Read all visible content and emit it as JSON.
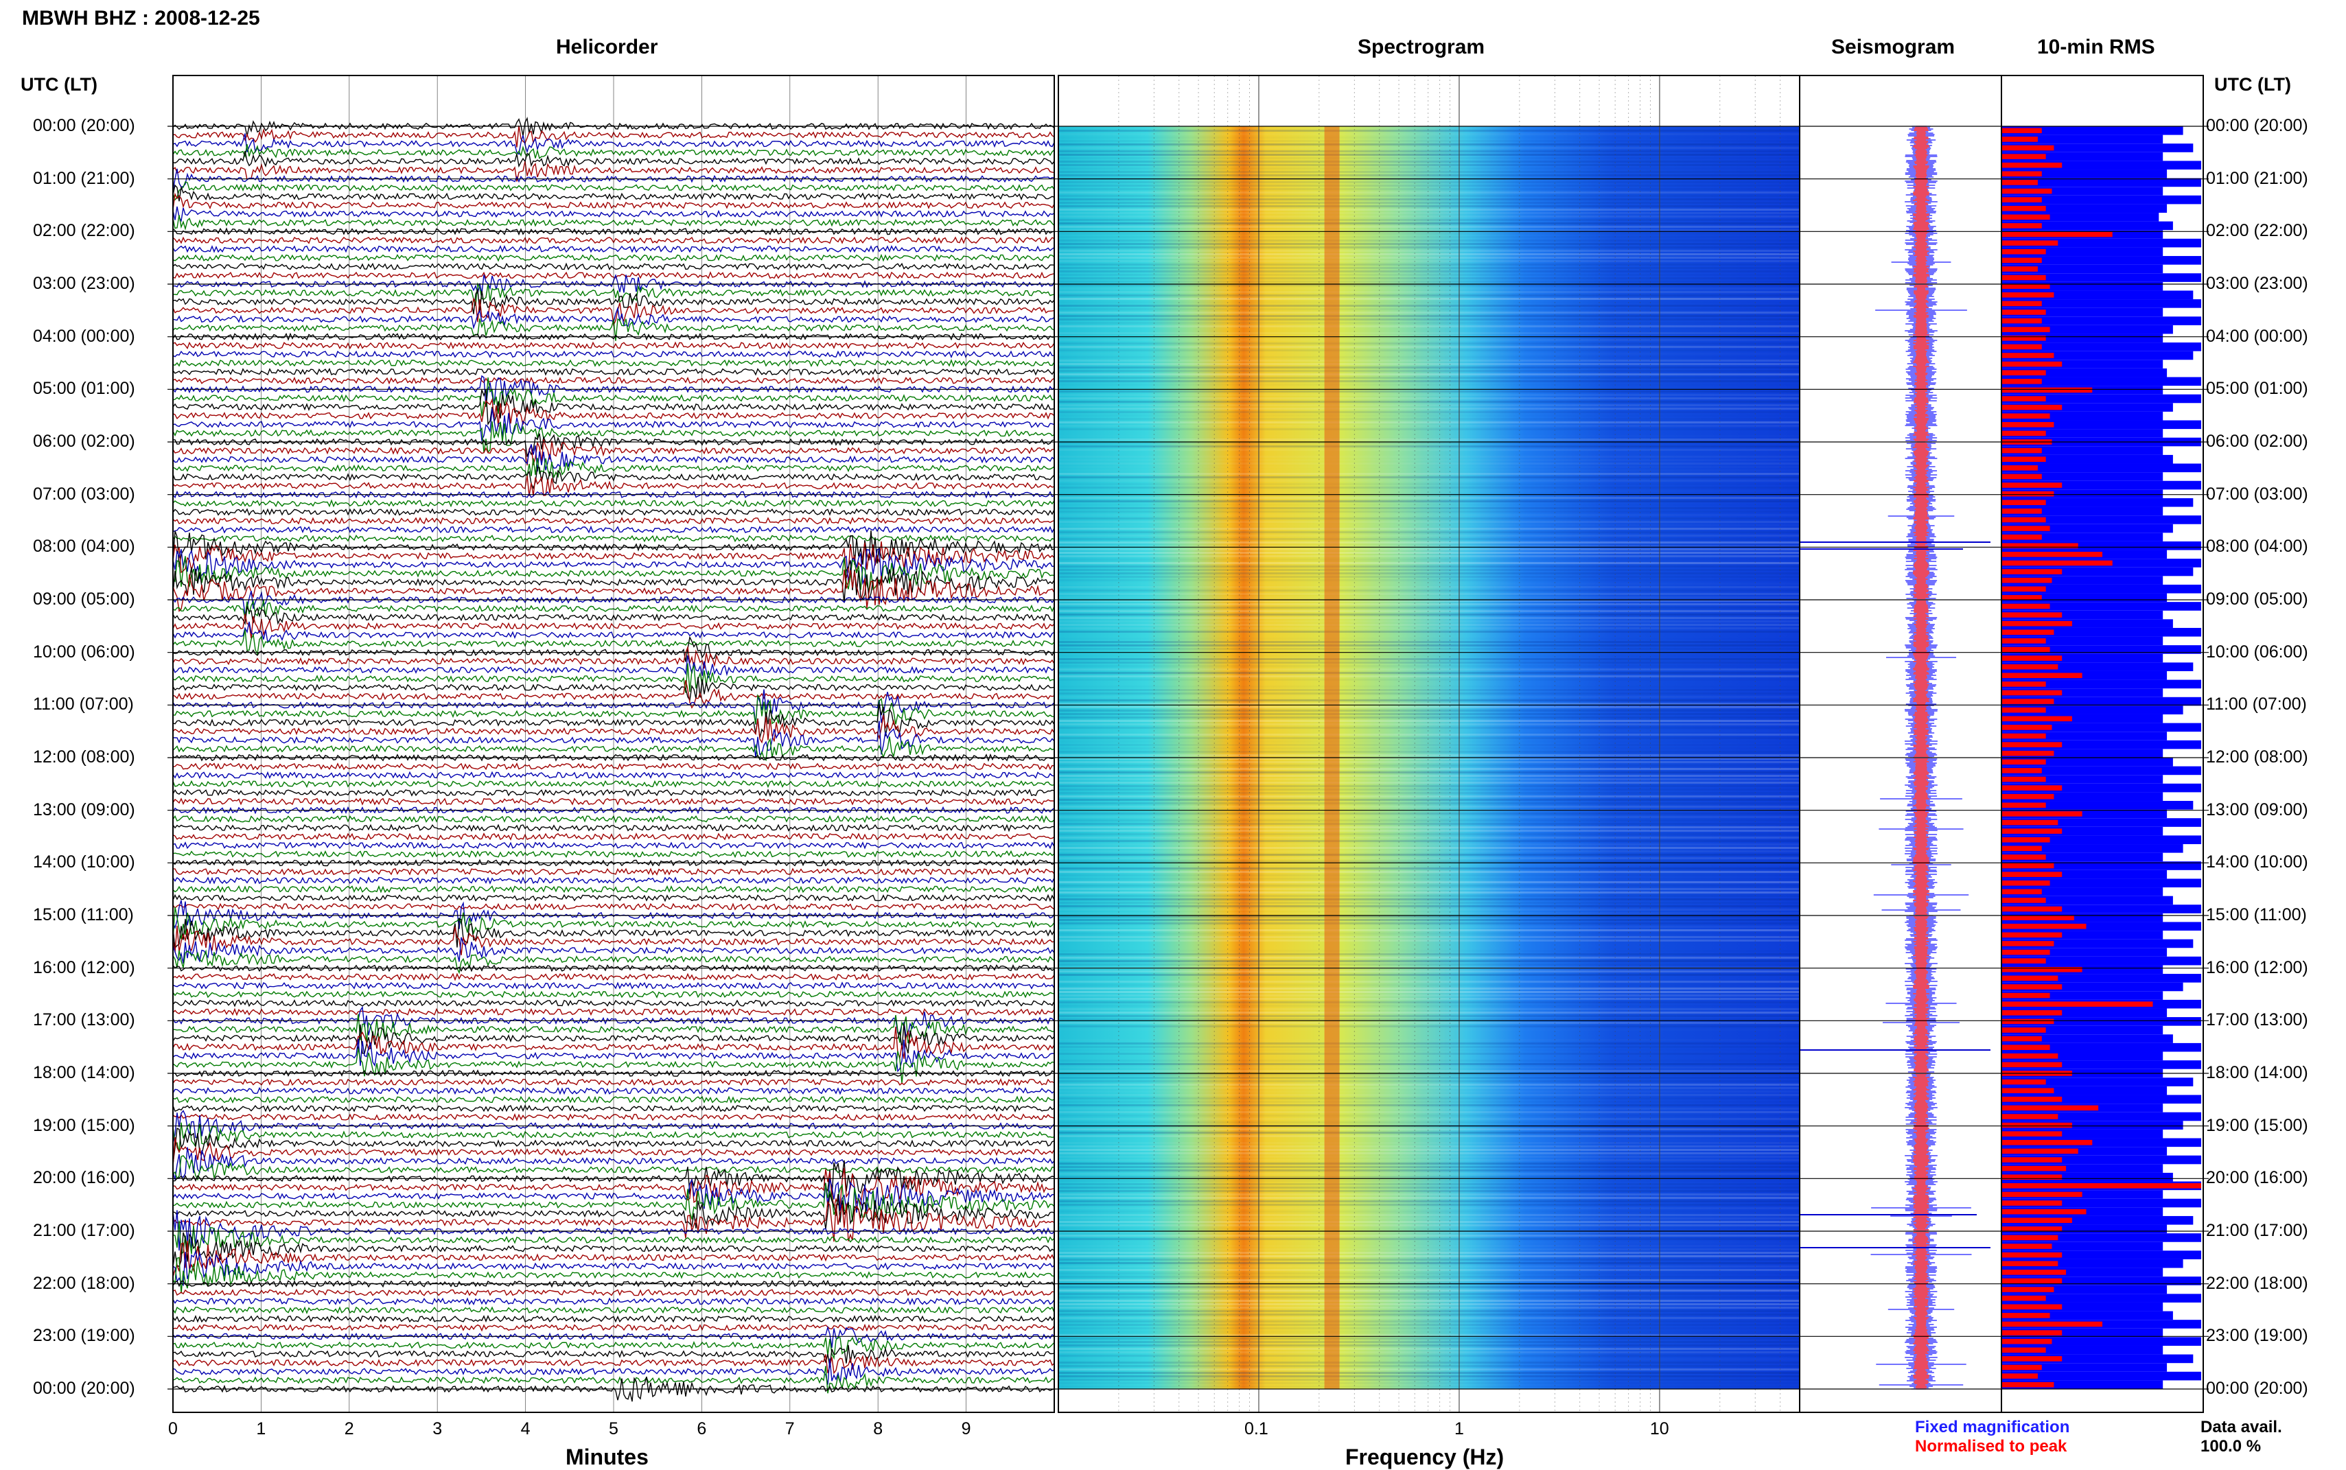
{
  "title": "MBWH BHZ : 2008-12-25",
  "panels": {
    "helicorder": "Helicorder",
    "spectrogram": "Spectrogram",
    "seismogram": "Seismogram",
    "rms": "10-min RMS"
  },
  "axis_left_header": "UTC (LT)",
  "axis_right_header": "UTC (LT)",
  "x_labels": {
    "helicorder": "Minutes",
    "spectrogram": "Frequency (Hz)"
  },
  "legend": {
    "fixed": "Fixed magnification",
    "normalised": "Normalised to peak",
    "fixed_color": "#1f1fff",
    "normalised_color": "#ff0000"
  },
  "data_avail_label": "Data avail.",
  "data_avail_value": "100.0 %",
  "colors": {
    "trace_cycle": [
      "#000000",
      "#a00000",
      "#0000b0",
      "#007a00"
    ],
    "rms_fixed": "#0000ff",
    "rms_normalised": "#ff0000"
  },
  "chart_data": {
    "type": "heatmap",
    "time_rows": [
      "00:00 (20:00)",
      "01:00 (21:00)",
      "02:00 (22:00)",
      "03:00 (23:00)",
      "04:00 (00:00)",
      "05:00 (01:00)",
      "06:00 (02:00)",
      "07:00 (03:00)",
      "08:00 (04:00)",
      "09:00 (05:00)",
      "10:00 (06:00)",
      "11:00 (07:00)",
      "12:00 (08:00)",
      "13:00 (09:00)",
      "14:00 (10:00)",
      "15:00 (11:00)",
      "16:00 (12:00)",
      "17:00 (13:00)",
      "18:00 (14:00)",
      "19:00 (15:00)",
      "20:00 (16:00)",
      "21:00 (17:00)",
      "22:00 (18:00)",
      "23:00 (19:00)",
      "00:00 (20:00)"
    ],
    "helicorder_xticks": [
      "0",
      "1",
      "2",
      "3",
      "4",
      "5",
      "6",
      "7",
      "8",
      "9"
    ],
    "helicorder_xrange": [
      0,
      10
    ],
    "spectrogram_xticks": [
      "0.1",
      "1",
      "10"
    ],
    "spectrogram_xrange": [
      0.01,
      50
    ],
    "spectrogram_xscale": "log",
    "spectrogram_peak_hz": 0.23,
    "rms_normalised_fraction": [
      0.2,
      0.18,
      0.26,
      0.22,
      0.3,
      0.2,
      0.18,
      0.25,
      0.2,
      0.22,
      0.24,
      0.2,
      0.55,
      0.28,
      0.22,
      0.2,
      0.18,
      0.22,
      0.24,
      0.26,
      0.2,
      0.22,
      0.2,
      0.24,
      0.22,
      0.2,
      0.26,
      0.3,
      0.22,
      0.2,
      0.45,
      0.22,
      0.3,
      0.24,
      0.26,
      0.22,
      0.25,
      0.2,
      0.22,
      0.18,
      0.2,
      0.3,
      0.26,
      0.22,
      0.2,
      0.22,
      0.24,
      0.2,
      0.38,
      0.5,
      0.55,
      0.3,
      0.25,
      0.22,
      0.2,
      0.24,
      0.3,
      0.35,
      0.26,
      0.22,
      0.24,
      0.3,
      0.28,
      0.4,
      0.22,
      0.3,
      0.26,
      0.22,
      0.35,
      0.25,
      0.22,
      0.3,
      0.26,
      0.22,
      0.2,
      0.22,
      0.3,
      0.26,
      0.22,
      0.4,
      0.28,
      0.3,
      0.24,
      0.2,
      0.22,
      0.26,
      0.3,
      0.24,
      0.2,
      0.22,
      0.3,
      0.36,
      0.42,
      0.3,
      0.26,
      0.24,
      0.22,
      0.4,
      0.28,
      0.3,
      0.24,
      0.75,
      0.3,
      0.26,
      0.22,
      0.2,
      0.24,
      0.28,
      0.3,
      0.35,
      0.22,
      0.26,
      0.3,
      0.48,
      0.28,
      0.35,
      0.3,
      0.45,
      0.38,
      0.3,
      0.32,
      0.3,
      0.99,
      0.4,
      0.3,
      0.42,
      0.35,
      0.3,
      0.28,
      0.25,
      0.3,
      0.28,
      0.32,
      0.3,
      0.26,
      0.22,
      0.3,
      0.24,
      0.5,
      0.3,
      0.25,
      0.22,
      0.3
    ],
    "rms_fixed_fraction": [
      0.9,
      0.8,
      0.95,
      0.8,
      0.99,
      0.82,
      0.99,
      0.8,
      0.99,
      0.82,
      0.78,
      0.85,
      0.8,
      0.99,
      0.8,
      0.99,
      0.8,
      0.99,
      0.8,
      0.95,
      0.99,
      0.8,
      0.99,
      0.85,
      0.8,
      0.99,
      0.95,
      0.8,
      0.82,
      0.99,
      0.8,
      0.99,
      0.85,
      0.8,
      0.99,
      0.8,
      0.99,
      0.8,
      0.85,
      0.99,
      0.8,
      0.99,
      0.8,
      0.95,
      0.8,
      0.99,
      0.85,
      0.8,
      0.99,
      0.82,
      0.99,
      0.95,
      0.8,
      0.99,
      0.82,
      0.99,
      0.8,
      0.85,
      0.99,
      0.8,
      0.99,
      0.8,
      0.95,
      0.82,
      0.99,
      0.8,
      0.99,
      0.9,
      0.8,
      0.99,
      0.82,
      0.99,
      0.8,
      0.85,
      0.99,
      0.8,
      0.99,
      0.8,
      0.95,
      0.82,
      0.99,
      0.8,
      0.99,
      0.9,
      0.8,
      0.99,
      0.82,
      0.99,
      0.8,
      0.85,
      0.99,
      0.8,
      0.99,
      0.8,
      0.95,
      0.82,
      0.99,
      0.8,
      0.99,
      0.9,
      0.8,
      0.99,
      0.82,
      0.99,
      0.8,
      0.85,
      0.99,
      0.8,
      0.99,
      0.8,
      0.95,
      0.82,
      0.99,
      0.8,
      0.99,
      0.9,
      0.8,
      0.99,
      0.82,
      0.99,
      0.8,
      0.85,
      0.99,
      0.8,
      0.99,
      0.8,
      0.95,
      0.82,
      0.99,
      0.8,
      0.99,
      0.9,
      0.8,
      0.99,
      0.82,
      0.99,
      0.8,
      0.85,
      0.99,
      0.8,
      0.99,
      0.8,
      0.95,
      0.82,
      0.99,
      0.8
    ],
    "events": [
      {
        "row": 0,
        "minute_start": 0.8,
        "minute_end": 1.4,
        "amp": 0.6
      },
      {
        "row": 0,
        "minute_start": 3.9,
        "minute_end": 4.6,
        "amp": 0.7
      },
      {
        "row": 1,
        "minute_start": 0.0,
        "minute_end": 0.3,
        "amp": 0.9
      },
      {
        "row": 3,
        "minute_start": 3.4,
        "minute_end": 4.1,
        "amp": 0.8
      },
      {
        "row": 3,
        "minute_start": 5.0,
        "minute_end": 5.7,
        "amp": 0.8
      },
      {
        "row": 5,
        "minute_start": 3.5,
        "minute_end": 4.4,
        "amp": 1.5
      },
      {
        "row": 6,
        "minute_start": 4.0,
        "minute_end": 5.0,
        "amp": 1.0
      },
      {
        "row": 8,
        "minute_start": 0.0,
        "minute_end": 1.4,
        "amp": 1.3
      },
      {
        "row": 8,
        "minute_start": 7.6,
        "minute_end": 9.9,
        "amp": 1.4
      },
      {
        "row": 9,
        "minute_start": 0.8,
        "minute_end": 1.5,
        "amp": 0.9
      },
      {
        "row": 10,
        "minute_start": 5.8,
        "minute_end": 6.4,
        "amp": 1.1
      },
      {
        "row": 11,
        "minute_start": 6.6,
        "minute_end": 7.2,
        "amp": 1.4
      },
      {
        "row": 11,
        "minute_start": 8.0,
        "minute_end": 8.6,
        "amp": 1.2
      },
      {
        "row": 15,
        "minute_start": 0.0,
        "minute_end": 1.2,
        "amp": 1.0
      },
      {
        "row": 15,
        "minute_start": 3.2,
        "minute_end": 3.8,
        "amp": 1.0
      },
      {
        "row": 17,
        "minute_start": 2.1,
        "minute_end": 3.0,
        "amp": 1.1
      },
      {
        "row": 17,
        "minute_start": 8.2,
        "minute_end": 9.0,
        "amp": 1.3
      },
      {
        "row": 19,
        "minute_start": 0.0,
        "minute_end": 1.0,
        "amp": 1.2
      },
      {
        "row": 20,
        "minute_start": 5.8,
        "minute_end": 7.0,
        "amp": 1.1
      },
      {
        "row": 20,
        "minute_start": 7.4,
        "minute_end": 9.9,
        "amp": 1.4
      },
      {
        "row": 21,
        "minute_start": 0.0,
        "minute_end": 1.6,
        "amp": 1.3
      },
      {
        "row": 23,
        "minute_start": 7.4,
        "minute_end": 8.3,
        "amp": 0.9
      },
      {
        "row": 24,
        "minute_start": 5.0,
        "minute_end": 7.0,
        "amp": 1.0
      }
    ]
  }
}
